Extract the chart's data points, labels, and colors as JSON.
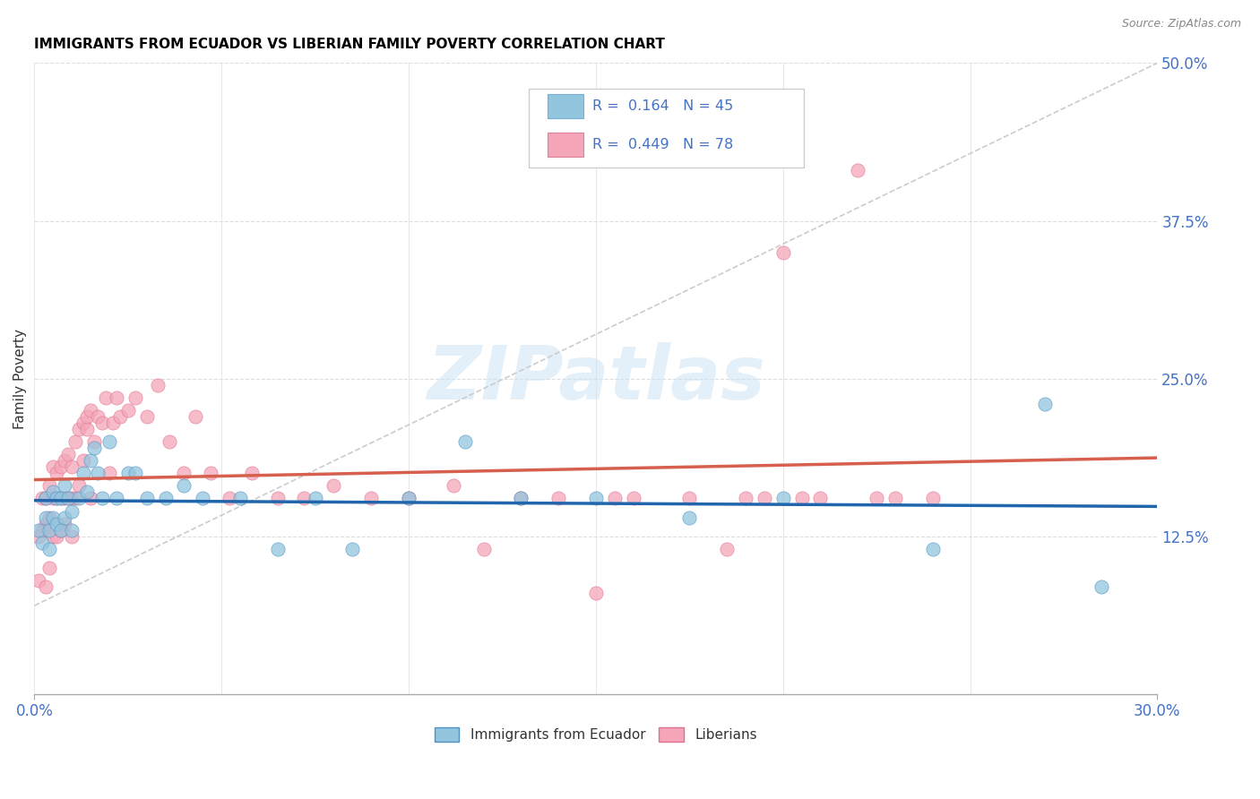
{
  "title": "IMMIGRANTS FROM ECUADOR VS LIBERIAN FAMILY POVERTY CORRELATION CHART",
  "source": "Source: ZipAtlas.com",
  "ylabel": "Family Poverty",
  "ytick_values": [
    0.0,
    0.125,
    0.25,
    0.375,
    0.5
  ],
  "xmin": 0.0,
  "xmax": 0.3,
  "ymin": 0.0,
  "ymax": 0.5,
  "watermark": "ZIPatlas",
  "blue_color": "#92c5de",
  "pink_color": "#f4a6b8",
  "blue_line_color": "#2166ac",
  "pink_line_color": "#d6604d",
  "dashed_line_color": "#cccccc",
  "ecuador_R": 0.164,
  "ecuador_N": 45,
  "liberian_R": 0.449,
  "liberian_N": 78,
  "ecuador_scatter_x": [
    0.001,
    0.002,
    0.003,
    0.003,
    0.004,
    0.004,
    0.005,
    0.005,
    0.006,
    0.006,
    0.007,
    0.007,
    0.008,
    0.008,
    0.009,
    0.01,
    0.01,
    0.012,
    0.013,
    0.014,
    0.015,
    0.016,
    0.017,
    0.018,
    0.02,
    0.022,
    0.025,
    0.027,
    0.03,
    0.035,
    0.04,
    0.045,
    0.055,
    0.065,
    0.075,
    0.085,
    0.1,
    0.115,
    0.13,
    0.15,
    0.175,
    0.2,
    0.24,
    0.27,
    0.285
  ],
  "ecuador_scatter_y": [
    0.13,
    0.12,
    0.14,
    0.155,
    0.115,
    0.13,
    0.14,
    0.16,
    0.135,
    0.155,
    0.13,
    0.155,
    0.14,
    0.165,
    0.155,
    0.13,
    0.145,
    0.155,
    0.175,
    0.16,
    0.185,
    0.195,
    0.175,
    0.155,
    0.2,
    0.155,
    0.175,
    0.175,
    0.155,
    0.155,
    0.165,
    0.155,
    0.155,
    0.115,
    0.155,
    0.115,
    0.155,
    0.2,
    0.155,
    0.155,
    0.14,
    0.155,
    0.115,
    0.23,
    0.085
  ],
  "liberian_scatter_x": [
    0.001,
    0.001,
    0.002,
    0.002,
    0.003,
    0.003,
    0.003,
    0.004,
    0.004,
    0.004,
    0.005,
    0.005,
    0.005,
    0.006,
    0.006,
    0.006,
    0.007,
    0.007,
    0.007,
    0.008,
    0.008,
    0.008,
    0.009,
    0.009,
    0.01,
    0.01,
    0.01,
    0.011,
    0.011,
    0.012,
    0.012,
    0.013,
    0.013,
    0.014,
    0.014,
    0.015,
    0.015,
    0.016,
    0.017,
    0.018,
    0.019,
    0.02,
    0.021,
    0.022,
    0.023,
    0.025,
    0.027,
    0.03,
    0.033,
    0.036,
    0.04,
    0.043,
    0.047,
    0.052,
    0.058,
    0.065,
    0.072,
    0.08,
    0.09,
    0.1,
    0.112,
    0.12,
    0.13,
    0.14,
    0.15,
    0.155,
    0.16,
    0.175,
    0.185,
    0.19,
    0.195,
    0.2,
    0.205,
    0.21,
    0.22,
    0.225,
    0.23,
    0.24
  ],
  "liberian_scatter_y": [
    0.125,
    0.09,
    0.13,
    0.155,
    0.085,
    0.135,
    0.155,
    0.1,
    0.14,
    0.165,
    0.125,
    0.155,
    0.18,
    0.125,
    0.155,
    0.175,
    0.13,
    0.155,
    0.18,
    0.135,
    0.155,
    0.185,
    0.155,
    0.19,
    0.125,
    0.155,
    0.18,
    0.155,
    0.2,
    0.165,
    0.21,
    0.185,
    0.215,
    0.21,
    0.22,
    0.155,
    0.225,
    0.2,
    0.22,
    0.215,
    0.235,
    0.175,
    0.215,
    0.235,
    0.22,
    0.225,
    0.235,
    0.22,
    0.245,
    0.2,
    0.175,
    0.22,
    0.175,
    0.155,
    0.175,
    0.155,
    0.155,
    0.165,
    0.155,
    0.155,
    0.165,
    0.115,
    0.155,
    0.155,
    0.08,
    0.155,
    0.155,
    0.155,
    0.115,
    0.155,
    0.155,
    0.35,
    0.155,
    0.155,
    0.415,
    0.155,
    0.155,
    0.155
  ]
}
